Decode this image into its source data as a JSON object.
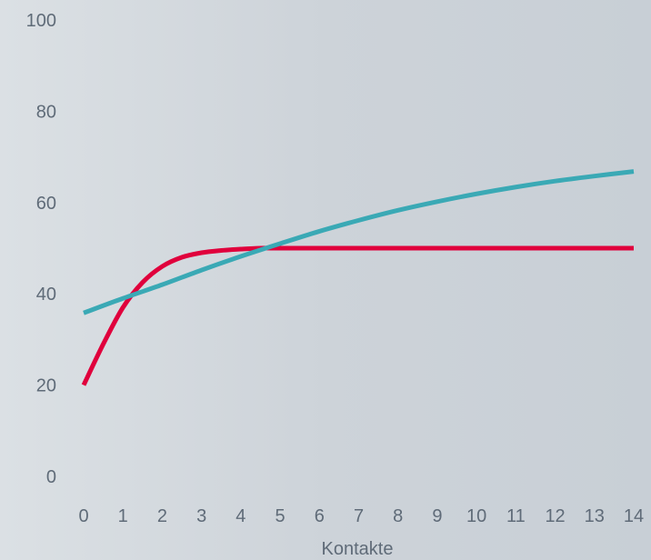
{
  "chart_data": {
    "type": "line",
    "xlabel": "Kontakte",
    "ylabel": "",
    "xlim": [
      0,
      14
    ],
    "ylim": [
      0,
      100
    ],
    "x_ticks": [
      "0",
      "1",
      "2",
      "3",
      "4",
      "5",
      "6",
      "7",
      "8",
      "9",
      "10",
      "11",
      "12",
      "13",
      "14"
    ],
    "y_ticks": [
      "0",
      "20",
      "40",
      "60",
      "80",
      "100"
    ],
    "grid": false,
    "legend": "none",
    "series": [
      {
        "color": "#e0003c",
        "x": [
          0,
          0.5,
          1,
          1.5,
          2,
          2.5,
          3,
          3.5,
          4,
          4.5,
          5,
          6,
          7,
          8,
          9,
          10,
          11,
          12,
          13,
          14
        ],
        "values": [
          20,
          29,
          37,
          42.5,
          46,
          48,
          49,
          49.5,
          49.8,
          50,
          50,
          50,
          50,
          50,
          50,
          50,
          50,
          50,
          50,
          50
        ]
      },
      {
        "color": "#3aa9b5",
        "x": [
          0,
          1,
          2,
          3,
          4,
          5,
          6,
          7,
          8,
          9,
          10,
          11,
          12,
          13,
          14
        ],
        "values": [
          35.8,
          39,
          42,
          45.2,
          48.2,
          51,
          53.7,
          56.1,
          58.3,
          60.2,
          61.9,
          63.4,
          64.7,
          65.8,
          66.8
        ]
      }
    ]
  }
}
